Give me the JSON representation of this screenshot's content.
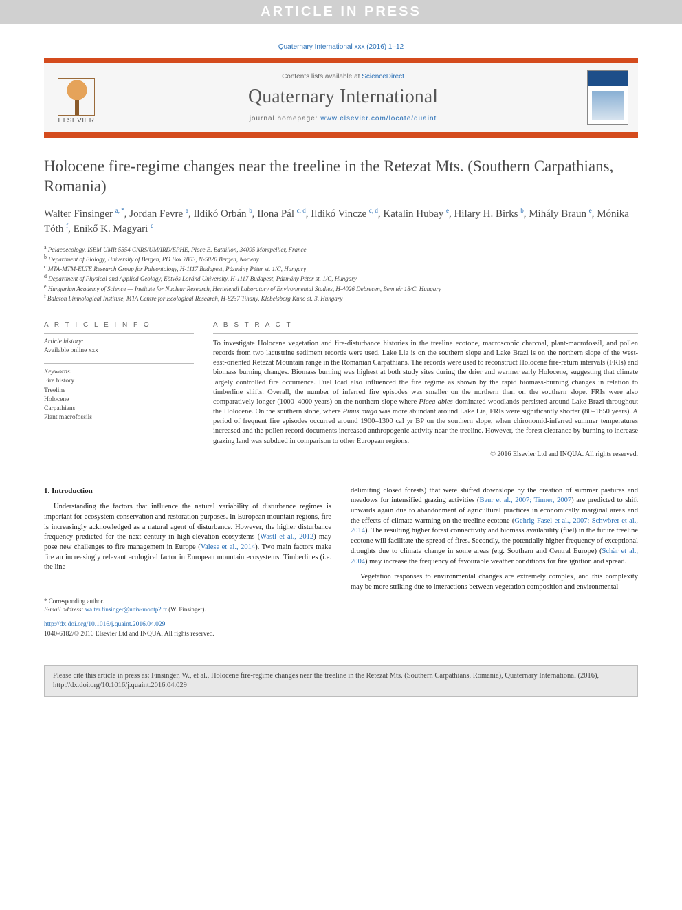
{
  "banner": {
    "text": "ARTICLE IN PRESS"
  },
  "topCite": "Quaternary International xxx (2016) 1–12",
  "journalBox": {
    "contentsPrefix": "Contents lists available at ",
    "contentsLink": "ScienceDirect",
    "journalName": "Quaternary International",
    "homepagePrefix": "journal homepage: ",
    "homepageLink": "www.elsevier.com/locate/quaint",
    "publisherWord": "ELSEVIER"
  },
  "title": "Holocene fire-regime changes near the treeline in the Retezat Mts. (Southern Carpathians, Romania)",
  "authors": [
    {
      "name": "Walter Finsinger",
      "affs": "a, *"
    },
    {
      "name": "Jordan Fevre",
      "affs": "a"
    },
    {
      "name": "Ildikó Orbán",
      "affs": "b"
    },
    {
      "name": "Ilona Pál",
      "affs": "c, d"
    },
    {
      "name": "Ildikó Vincze",
      "affs": "c, d"
    },
    {
      "name": "Katalin Hubay",
      "affs": "e"
    },
    {
      "name": "Hilary H. Birks",
      "affs": "b"
    },
    {
      "name": "Mihály Braun",
      "affs": "e"
    },
    {
      "name": "Mónika Tóth",
      "affs": "f"
    },
    {
      "name": "Enikő K. Magyari",
      "affs": "c"
    }
  ],
  "affiliations": [
    {
      "key": "a",
      "text": "Palaeoecology, ISEM UMR 5554 CNRS/UM/IRD/EPHE, Place E. Bataillon, 34095 Montpellier, France"
    },
    {
      "key": "b",
      "text": "Department of Biology, University of Bergen, PO Box 7803, N-5020 Bergen, Norway"
    },
    {
      "key": "c",
      "text": "MTA-MTM-ELTE Research Group for Paleontology, H-1117 Budapest, Pázmány Péter st. 1/C, Hungary"
    },
    {
      "key": "d",
      "text": "Department of Physical and Applied Geology, Eötvös Loránd University, H-1117 Budapest, Pázmány Péter st. 1/C, Hungary"
    },
    {
      "key": "e",
      "text": "Hungarian Academy of Science — Institute for Nuclear Research, Hertelendi Laboratory of Environmental Studies, H-4026 Debrecen, Bem tér 18/C, Hungary"
    },
    {
      "key": "f",
      "text": "Balaton Limnological Institute, MTA Centre for Ecological Research, H-8237 Tihany, Klebelsberg Kuno st. 3, Hungary"
    }
  ],
  "articleInfo": {
    "heading": "A R T I C L E   I N F O",
    "historyLabel": "Article history:",
    "historyText": "Available online xxx",
    "keywordsLabel": "Keywords:",
    "keywords": [
      "Fire history",
      "Treeline",
      "Holocene",
      "Carpathians",
      "Plant macrofossils"
    ]
  },
  "abstract": {
    "heading": "A B S T R A C T",
    "text": "To investigate Holocene vegetation and fire-disturbance histories in the treeline ecotone, macroscopic charcoal, plant-macrofossil, and pollen records from two lacustrine sediment records were used. Lake Lia is on the southern slope and Lake Brazi is on the northern slope of the west-east-oriented Retezat Mountain range in the Romanian Carpathians. The records were used to reconstruct Holocene fire-return intervals (FRIs) and biomass burning changes. Biomass burning was highest at both study sites during the drier and warmer early Holocene, suggesting that climate largely controlled fire occurrence. Fuel load also influenced the fire regime as shown by the rapid biomass-burning changes in relation to timberline shifts. Overall, the number of inferred fire episodes was smaller on the northern than on the southern slope. FRIs were also comparatively longer (1000–4000 years) on the northern slope where Picea abies-dominated woodlands persisted around Lake Brazi throughout the Holocene. On the southern slope, where Pinus mugo was more abundant around Lake Lia, FRIs were significantly shorter (80–1650 years). A period of frequent fire episodes occurred around 1900–1300 cal yr BP on the southern slope, when chironomid-inferred summer temperatures increased and the pollen record documents increased anthropogenic activity near the treeline. However, the forest clearance by burning to increase grazing land was subdued in comparison to other European regions.",
    "copyright": "© 2016 Elsevier Ltd and INQUA. All rights reserved."
  },
  "body": {
    "introHeading": "1.  Introduction",
    "leftParas": [
      "Understanding the factors that influence the natural variability of disturbance regimes is important for ecosystem conservation and restoration purposes. In European mountain regions, fire is increasingly acknowledged as a natural agent of disturbance. However, the higher disturbance frequency predicted for the next century in high-elevation ecosystems (Wastl et al., 2012) may pose new challenges to fire management in Europe (Valese et al., 2014). Two main factors make fire an increasingly relevant ecological factor in European mountain ecosystems. Timberlines (i.e. the line"
    ],
    "rightParas": [
      "delimiting closed forests) that were shifted downslope by the creation of summer pastures and meadows for intensified grazing activities (Baur et al., 2007; Tinner, 2007) are predicted to shift upwards again due to abandonment of agricultural practices in economically marginal areas and the effects of climate warming on the treeline ecotone (Gehrig-Fasel et al., 2007; Schwörer et al., 2014). The resulting higher forest connectivity and biomass availability (fuel) in the future treeline ecotone will facilitate the spread of fires. Secondly, the potentially higher frequency of exceptional droughts due to climate change in some areas (e.g. Southern and Central Europe) (Schär et al., 2004) may increase the frequency of favourable weather conditions for fire ignition and spread.",
      "Vegetation responses to environmental changes are extremely complex, and this complexity may be more striking due to interactions between vegetation composition and environmental"
    ],
    "refs": {
      "wastl": "Wastl et al., 2012",
      "valese": "Valese et al., 2014",
      "baur": "Baur et al., 2007; Tinner, 2007",
      "gehrig": "Gehrig-Fasel et al., 2007; Schwörer et al., 2014",
      "schar": "Schär et al., 2004"
    }
  },
  "corresponding": {
    "label": "* Corresponding author.",
    "emailLabel": "E-mail address:",
    "email": "walter.finsinger@univ-montp2.fr",
    "emailSuffix": "(W. Finsinger)."
  },
  "doi": {
    "url": "http://dx.doi.org/10.1016/j.quaint.2016.04.029",
    "issn": "1040-6182/© 2016 Elsevier Ltd and INQUA. All rights reserved."
  },
  "footerCite": "Please cite this article in press as: Finsinger, W., et al., Holocene fire-regime changes near the treeline in the Retezat Mts. (Southern Carpathians, Romania), Quaternary International (2016), http://dx.doi.org/10.1016/j.quaint.2016.04.029",
  "colors": {
    "bannerBg": "#d0d0d0",
    "bannerText": "#ffffff",
    "accentBar": "#d44b1d",
    "link": "#2a6fb5",
    "bodyText": "#333333",
    "footerBg": "#e8e8e8"
  }
}
